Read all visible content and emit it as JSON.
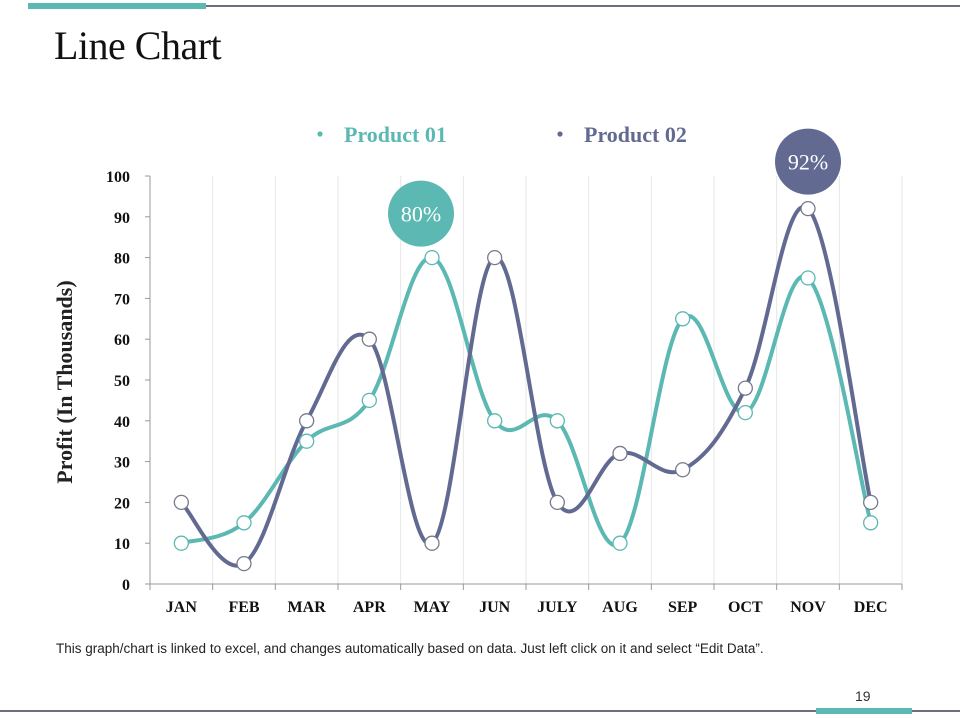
{
  "page": {
    "title": "Line Chart",
    "footnote": "This graph/chart is linked to excel, and changes automatically  based on data. Just left click on it and select “Edit Data”.",
    "page_number": "19"
  },
  "colors": {
    "product01": "#5cb8b2",
    "product02": "#636a91",
    "accent_rule": "#5cb8b2",
    "rule": "#6b6f80"
  },
  "chart_data": {
    "type": "line",
    "title": "",
    "ylabel": "Profit (In Thousands)",
    "xlabel": "",
    "ylim": [
      0,
      100
    ],
    "yticks": [
      0,
      10,
      20,
      30,
      40,
      50,
      60,
      70,
      80,
      90,
      100
    ],
    "categories": [
      "JAN",
      "FEB",
      "MAR",
      "APR",
      "MAY",
      "JUN",
      "JULY",
      "AUG",
      "SEP",
      "OCT",
      "NOV",
      "DEC"
    ],
    "series": [
      {
        "name": "Product 01",
        "values": [
          10,
          15,
          35,
          45,
          80,
          40,
          40,
          10,
          65,
          42,
          75,
          15
        ]
      },
      {
        "name": "Product 02",
        "values": [
          20,
          5,
          40,
          60,
          10,
          80,
          20,
          32,
          28,
          48,
          92,
          20
        ]
      }
    ],
    "legend": "top",
    "annotations": [
      {
        "text": "80%",
        "series": 0,
        "category": "MAY"
      },
      {
        "text": "92%",
        "series": 1,
        "category": "NOV"
      }
    ]
  }
}
